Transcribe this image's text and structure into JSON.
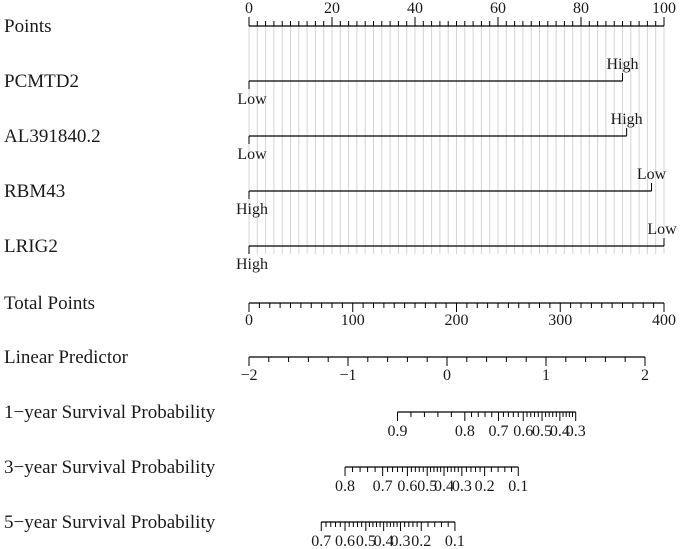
{
  "chart_data": {
    "type": "nomogram",
    "points_scale": {
      "label": "Points",
      "range": [
        0,
        100
      ],
      "labeled_ticks": [
        0,
        20,
        40,
        60,
        80,
        100
      ],
      "minor_step": 2
    },
    "variables": [
      {
        "label": "PCMTD2",
        "left_level": "Low",
        "right_level": "High",
        "points": 90
      },
      {
        "label": "AL391840.2",
        "left_level": "Low",
        "right_level": "High",
        "points": 91
      },
      {
        "label": "RBM43",
        "left_level": "High",
        "right_level": "Low",
        "points": 97
      },
      {
        "label": "LRIG2",
        "left_level": "High",
        "right_level": "Low",
        "points": 100
      }
    ],
    "total_points": {
      "label": "Total Points",
      "range": [
        0,
        400
      ],
      "labeled_ticks": [
        0,
        100,
        200,
        300,
        400
      ],
      "minor_step": 10
    },
    "linear_predictor": {
      "label": "Linear Predictor",
      "range": [
        -2,
        2
      ],
      "labeled_ticks": [
        -2,
        -1,
        0,
        1,
        2
      ],
      "tick_labels": [
        "−2",
        "−1",
        "0",
        "1",
        "2"
      ],
      "minor_step": 0.2
    },
    "survival": [
      {
        "label": "1−year Survival Probability",
        "probabilities": [
          0.9,
          0.8,
          0.7,
          0.6,
          0.5,
          0.4,
          0.3
        ],
        "tick_labels": [
          "0.9",
          "0.8",
          "0.7",
          "0.6",
          "0.5",
          "0.4",
          "0.3"
        ],
        "linear_predictor_at_ticks": [
          -0.5,
          0.18,
          0.52,
          0.77,
          0.96,
          1.14,
          1.3
        ]
      },
      {
        "label": "3−year Survival Probability",
        "probabilities": [
          0.8,
          0.7,
          0.6,
          0.5,
          0.4,
          0.3,
          0.2,
          0.1
        ],
        "tick_labels": [
          "0.8",
          "0.7",
          "0.6",
          "0.5",
          "0.4",
          "0.3",
          "0.2",
          "0.1"
        ],
        "linear_predictor_at_ticks": [
          -1.03,
          -0.65,
          -0.4,
          -0.2,
          -0.03,
          0.15,
          0.38,
          0.72
        ]
      },
      {
        "label": "5−year Survival Probability",
        "probabilities": [
          0.7,
          0.6,
          0.5,
          0.4,
          0.3,
          0.2,
          0.1
        ],
        "tick_labels": [
          "0.7",
          "0.6",
          "0.5",
          "0.4",
          "0.3",
          "0.2",
          "0.1"
        ],
        "linear_predictor_at_ticks": [
          -1.27,
          -1.03,
          -0.82,
          -0.64,
          -0.47,
          -0.26,
          0.08
        ]
      }
    ]
  }
}
